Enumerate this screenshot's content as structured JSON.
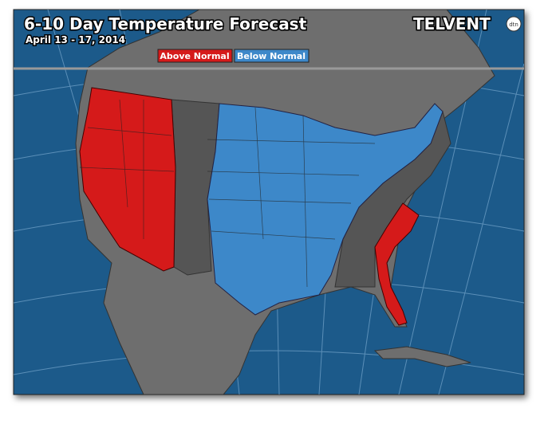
{
  "header": {
    "title": "6-10 Day Temperature Forecast",
    "subtitle": "April 13 - 17, 2014",
    "brand": "TELVENT",
    "brand_tag": "dtn"
  },
  "legend": [
    {
      "label": "Above Normal",
      "color": "#d51a1a"
    },
    {
      "label": "Below Normal",
      "color": "#3d88c9"
    }
  ]
}
